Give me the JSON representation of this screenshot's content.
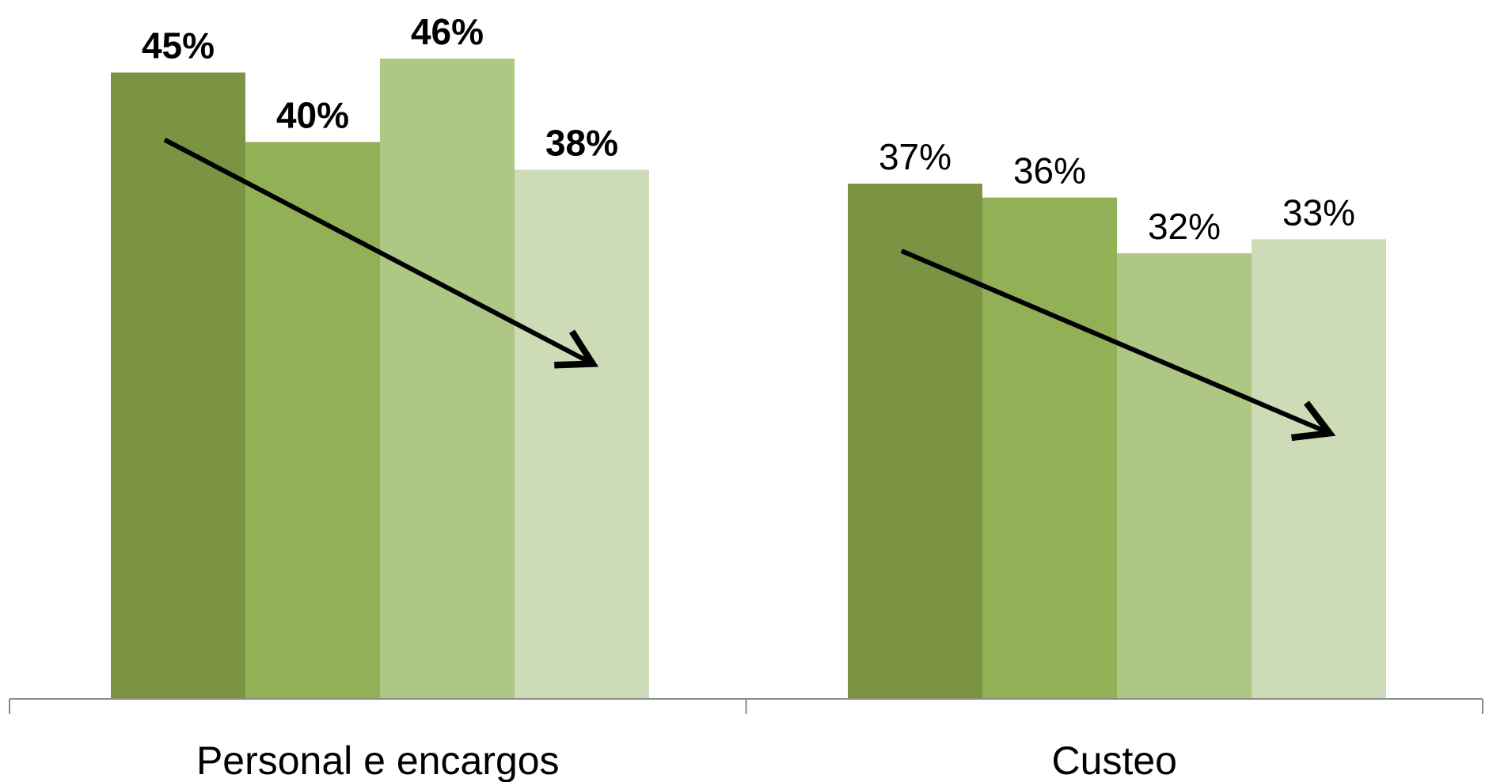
{
  "chart_data": {
    "type": "bar",
    "categories": [
      "Personal e encargos",
      "Custeo"
    ],
    "series": [
      {
        "values": [
          45,
          37
        ],
        "color": "#7a9443"
      },
      {
        "values": [
          40,
          36
        ],
        "color": "#92b055"
      },
      {
        "values": [
          46,
          32
        ],
        "color": "#aec785"
      },
      {
        "values": [
          38,
          33
        ],
        "color": "#cddcb6"
      }
    ],
    "data_labels": [
      [
        "45%",
        "37%"
      ],
      [
        "40%",
        "36%"
      ],
      [
        "46%",
        "32%"
      ],
      [
        "38%",
        "33%"
      ]
    ],
    "data_label_bold": [
      true,
      false
    ],
    "ylim": [
      0,
      46
    ],
    "grid": false,
    "legend": "none",
    "annotations": [
      {
        "type": "trend-arrow",
        "category": "Personal e encargos",
        "direction": "decreasing"
      },
      {
        "type": "trend-arrow",
        "category": "Custeo",
        "direction": "decreasing"
      }
    ]
  }
}
